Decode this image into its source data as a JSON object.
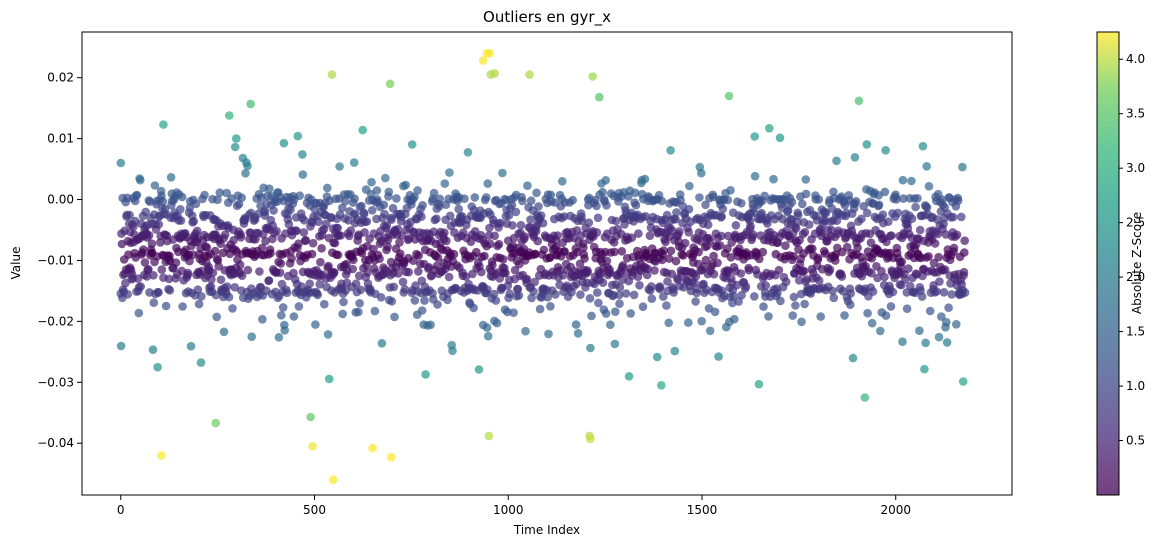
{
  "chart_data": {
    "type": "scatter",
    "title": "Outliers en gyr_x",
    "xlabel": "Time Index",
    "ylabel": "Value",
    "xlim": [
      -100,
      2300
    ],
    "ylim": [
      -0.0485,
      0.0275
    ],
    "x_ticks": [
      0,
      500,
      1000,
      1500,
      2000
    ],
    "y_ticks": [
      -0.04,
      -0.03,
      -0.02,
      -0.01,
      0.0,
      0.01,
      0.02
    ],
    "x_tick_labels": [
      "0",
      "500",
      "1000",
      "1500",
      "2000"
    ],
    "y_tick_labels": [
      "−0.04",
      "−0.03",
      "−0.02",
      "−0.01",
      "0.00",
      "0.01",
      "0.02"
    ],
    "n_points": 2200,
    "distribution": {
      "center": -0.009,
      "spread_sd": 0.0075,
      "description_levels": [
        -0.015,
        -0.012,
        -0.009,
        -0.006,
        -0.003,
        0.0
      ]
    },
    "colormap": "viridis",
    "point_alpha": 0.7,
    "colorbar": {
      "label": "Absolute Z-Score",
      "range": [
        0.0,
        4.25
      ],
      "ticks": [
        0.5,
        1.0,
        1.5,
        2.0,
        2.5,
        3.0,
        3.5,
        4.0
      ],
      "tick_labels": [
        "0.5",
        "1.0",
        "1.5",
        "2.0",
        "2.5",
        "3.0",
        "3.5",
        "4.0"
      ]
    },
    "highlight_points": [
      {
        "x": 0,
        "y": 0.006
      },
      {
        "x": 105,
        "y": -0.042
      },
      {
        "x": 110,
        "y": 0.0123
      },
      {
        "x": 245,
        "y": -0.0367
      },
      {
        "x": 280,
        "y": 0.0138
      },
      {
        "x": 335,
        "y": 0.0157
      },
      {
        "x": 490,
        "y": -0.0357
      },
      {
        "x": 495,
        "y": -0.0405
      },
      {
        "x": 545,
        "y": 0.0205
      },
      {
        "x": 548,
        "y": -0.046
      },
      {
        "x": 650,
        "y": -0.0408
      },
      {
        "x": 695,
        "y": 0.019
      },
      {
        "x": 698,
        "y": -0.0423
      },
      {
        "x": 935,
        "y": 0.0228
      },
      {
        "x": 945,
        "y": 0.024
      },
      {
        "x": 952,
        "y": 0.024
      },
      {
        "x": 950,
        "y": -0.0388
      },
      {
        "x": 955,
        "y": 0.0205
      },
      {
        "x": 965,
        "y": 0.0207
      },
      {
        "x": 1055,
        "y": 0.0205
      },
      {
        "x": 1210,
        "y": -0.0388
      },
      {
        "x": 1212,
        "y": -0.0393
      },
      {
        "x": 1218,
        "y": 0.0202
      },
      {
        "x": 1235,
        "y": 0.0168
      },
      {
        "x": 1395,
        "y": -0.0305
      },
      {
        "x": 1905,
        "y": 0.0162
      },
      {
        "x": 1920,
        "y": -0.0325
      }
    ]
  }
}
